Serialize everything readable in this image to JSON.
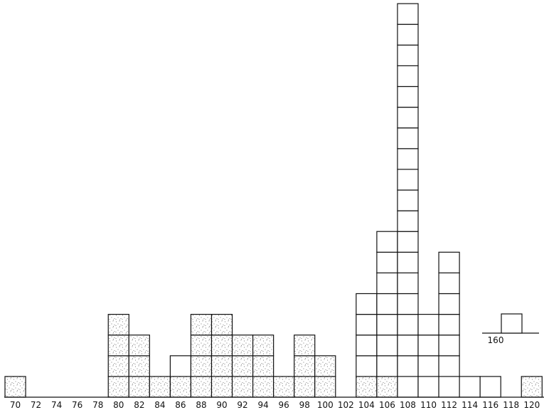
{
  "chart_data": {
    "type": "bar",
    "style": "unit-block histogram (each box = one count)",
    "x_tick_labels": [
      "70",
      "72",
      "74",
      "76",
      "78",
      "80",
      "82",
      "84",
      "86",
      "88",
      "90",
      "92",
      "94",
      "96",
      "98",
      "100",
      "102",
      "104",
      "106",
      "108",
      "110",
      "112",
      "114",
      "116",
      "118",
      "120"
    ],
    "categories": [
      70,
      72,
      74,
      76,
      78,
      80,
      82,
      84,
      86,
      88,
      90,
      92,
      94,
      96,
      98,
      100,
      102,
      104,
      106,
      108,
      110,
      112,
      114,
      116,
      118,
      120
    ],
    "series": [
      {
        "fill": "stippled",
        "values": [
          1,
          0,
          0,
          0,
          0,
          4,
          3,
          1,
          1,
          4,
          4,
          3,
          3,
          1,
          3,
          2,
          0,
          1,
          1,
          0,
          0,
          0,
          0,
          0,
          0,
          1
        ]
      },
      {
        "fill": "open",
        "values": [
          0,
          0,
          0,
          0,
          0,
          0,
          0,
          0,
          1,
          0,
          0,
          0,
          0,
          0,
          0,
          0,
          0,
          4,
          7,
          19,
          4,
          7,
          1,
          1,
          0,
          0
        ]
      }
    ],
    "totals": [
      1,
      0,
      0,
      0,
      0,
      4,
      3,
      1,
      2,
      4,
      4,
      3,
      3,
      1,
      3,
      2,
      0,
      5,
      8,
      19,
      4,
      7,
      1,
      1,
      0,
      1
    ],
    "outlier_marker": {
      "label": "160",
      "count": 1,
      "fill": "open"
    },
    "ylim": [
      0,
      19
    ],
    "grid": false,
    "colors": {
      "stroke": "#111111",
      "stipple": "#555555",
      "background": "#ffffff"
    }
  }
}
